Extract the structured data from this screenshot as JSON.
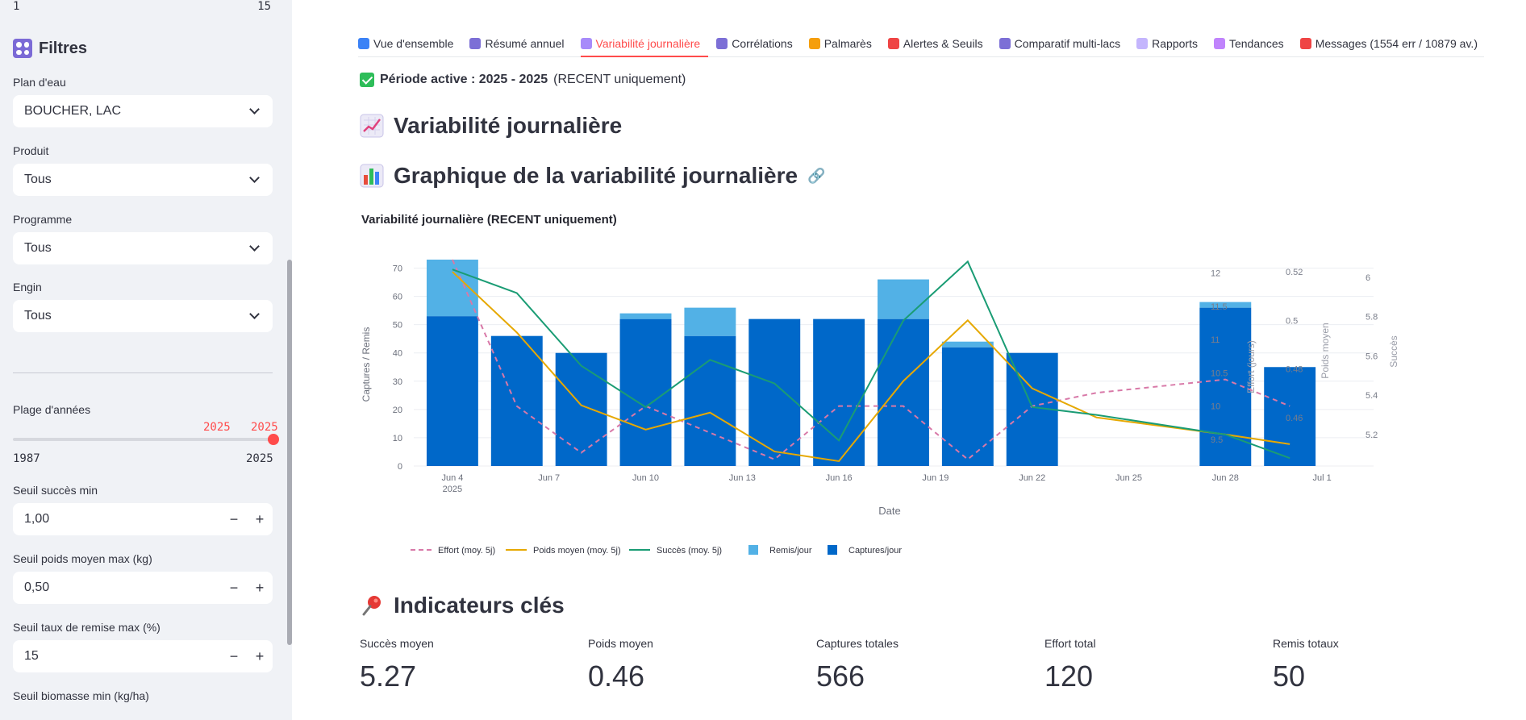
{
  "sidebar": {
    "top_slider": {
      "min": "1",
      "max": "15"
    },
    "title": "Filtres",
    "filters": [
      {
        "label": "Plan d'eau",
        "value": "BOUCHER, LAC"
      },
      {
        "label": "Produit",
        "value": "Tous"
      },
      {
        "label": "Programme",
        "value": "Tous"
      },
      {
        "label": "Engin",
        "value": "Tous"
      }
    ],
    "year_range": {
      "label": "Plage d'années",
      "from": "2025",
      "to": "2025",
      "min": "1987",
      "max": "2025"
    },
    "numbers": [
      {
        "label": "Seuil succès min",
        "value": "1,00"
      },
      {
        "label": "Seuil poids moyen max (kg)",
        "value": "0,50"
      },
      {
        "label": "Seuil taux de remise max (%)",
        "value": "15"
      }
    ],
    "cut_label": "Seuil biomasse min (kg/ha)",
    "minus": "−",
    "plus": "+"
  },
  "tabs": [
    {
      "label": "Vue d'ensemble",
      "color": "#3b82f6"
    },
    {
      "label": "Résumé annuel",
      "color": "#7c6fd6"
    },
    {
      "label": "Variabilité journalière",
      "color": "#a78bfa"
    },
    {
      "label": "Corrélations",
      "color": "#7c6fd6"
    },
    {
      "label": "Palmarès",
      "color": "#f59e0b"
    },
    {
      "label": "Alertes & Seuils",
      "color": "#ef4444"
    },
    {
      "label": "Comparatif multi-lacs",
      "color": "#7c6fd6"
    },
    {
      "label": "Rapports",
      "color": "#c4b5fd"
    },
    {
      "label": "Tendances",
      "color": "#c084fc"
    },
    {
      "label": "Messages (1554 err / 10879 av.)",
      "color": "#ef4444"
    }
  ],
  "active_tab_index": 2,
  "period": {
    "bold": "Période active : 2025 - 2025",
    "rest": "(RECENT uniquement)"
  },
  "headings": {
    "main": "Variabilité journalière",
    "graph": "Graphique de la variabilité journalière",
    "kpis": "Indicateurs clés"
  },
  "chart_data": {
    "type": "bar",
    "title": "Variabilité journalière (RECENT uniquement)",
    "xlabel": "Date",
    "ylabel": "Captures / Remis",
    "x_ticks": [
      "Jun 4\n2025",
      "Jun 7",
      "Jun 10",
      "Jun 13",
      "Jun 16",
      "Jun 19",
      "Jun 22",
      "Jun 25",
      "Jun 28",
      "Jul 1"
    ],
    "x_tick_days": [
      0,
      3,
      6,
      9,
      12,
      15,
      18,
      21,
      24,
      27
    ],
    "ylim": [
      0,
      73
    ],
    "y_ticks": [
      0,
      10,
      20,
      30,
      40,
      50,
      60,
      70
    ],
    "bar_days": [
      0,
      2,
      4,
      6,
      8,
      10,
      12,
      14,
      16,
      18,
      20,
      24,
      26
    ],
    "series": [
      {
        "name": "Captures/jour",
        "type": "bar",
        "color": "#0068c9",
        "values": [
          53,
          46,
          40,
          52,
          46,
          52,
          52,
          52,
          42,
          40,
          0,
          56,
          35
        ]
      },
      {
        "name": "Remis/jour",
        "type": "bar",
        "color": "#52b1e6",
        "values": [
          20,
          0,
          0,
          2,
          10,
          0,
          0,
          14,
          2,
          0,
          0,
          2,
          0
        ]
      },
      {
        "name": "Effort (moy. 5j)",
        "type": "line",
        "dash": true,
        "color": "#d879a8",
        "axis": "effort",
        "values": [
          12.2,
          10.0,
          9.3,
          10.0,
          9.6,
          9.2,
          10.0,
          10.0,
          9.2,
          10.0,
          10.2,
          10.4,
          10.0
        ]
      },
      {
        "name": "Poids moyen (moy. 5j)",
        "type": "line",
        "color": "#e6a800",
        "axis": "poids",
        "values": [
          0.52,
          0.495,
          0.465,
          0.455,
          0.462,
          0.446,
          0.442,
          0.475,
          0.5,
          0.472,
          0.46,
          0.453,
          0.449
        ]
      },
      {
        "name": "Succès (moy. 5j)",
        "type": "line",
        "color": "#1a9c74",
        "axis": "succes",
        "values": [
          6.04,
          5.92,
          5.55,
          5.34,
          5.58,
          5.46,
          5.17,
          5.78,
          6.08,
          5.34,
          5.3,
          5.2,
          5.08
        ]
      }
    ],
    "legend": [
      "Effort (moy. 5j)",
      "Poids moyen (moy. 5j)",
      "Succès (moy. 5j)",
      "Remis/jour",
      "Captures/jour"
    ],
    "legend_position": "bottom-left",
    "right_axes": [
      {
        "id": "effort",
        "title": "Effort (jours)",
        "ticks": [
          9.5,
          10,
          10.5,
          11,
          11.5,
          12
        ],
        "range": [
          9.1,
          12.2
        ]
      },
      {
        "id": "poids",
        "title": "Poids moyen",
        "ticks": [
          0.46,
          0.48,
          0.5,
          0.52
        ],
        "range": [
          0.44,
          0.525
        ]
      },
      {
        "id": "succes",
        "title": "Succès",
        "ticks": [
          5.2,
          5.4,
          5.6,
          5.8,
          6
        ],
        "range": [
          5.04,
          6.09
        ]
      }
    ]
  },
  "kpis": [
    {
      "label": "Succès moyen",
      "value": "5.27"
    },
    {
      "label": "Poids moyen",
      "value": "0.46"
    },
    {
      "label": "Captures totales",
      "value": "566"
    },
    {
      "label": "Effort total",
      "value": "120"
    },
    {
      "label": "Remis totaux",
      "value": "50"
    }
  ]
}
